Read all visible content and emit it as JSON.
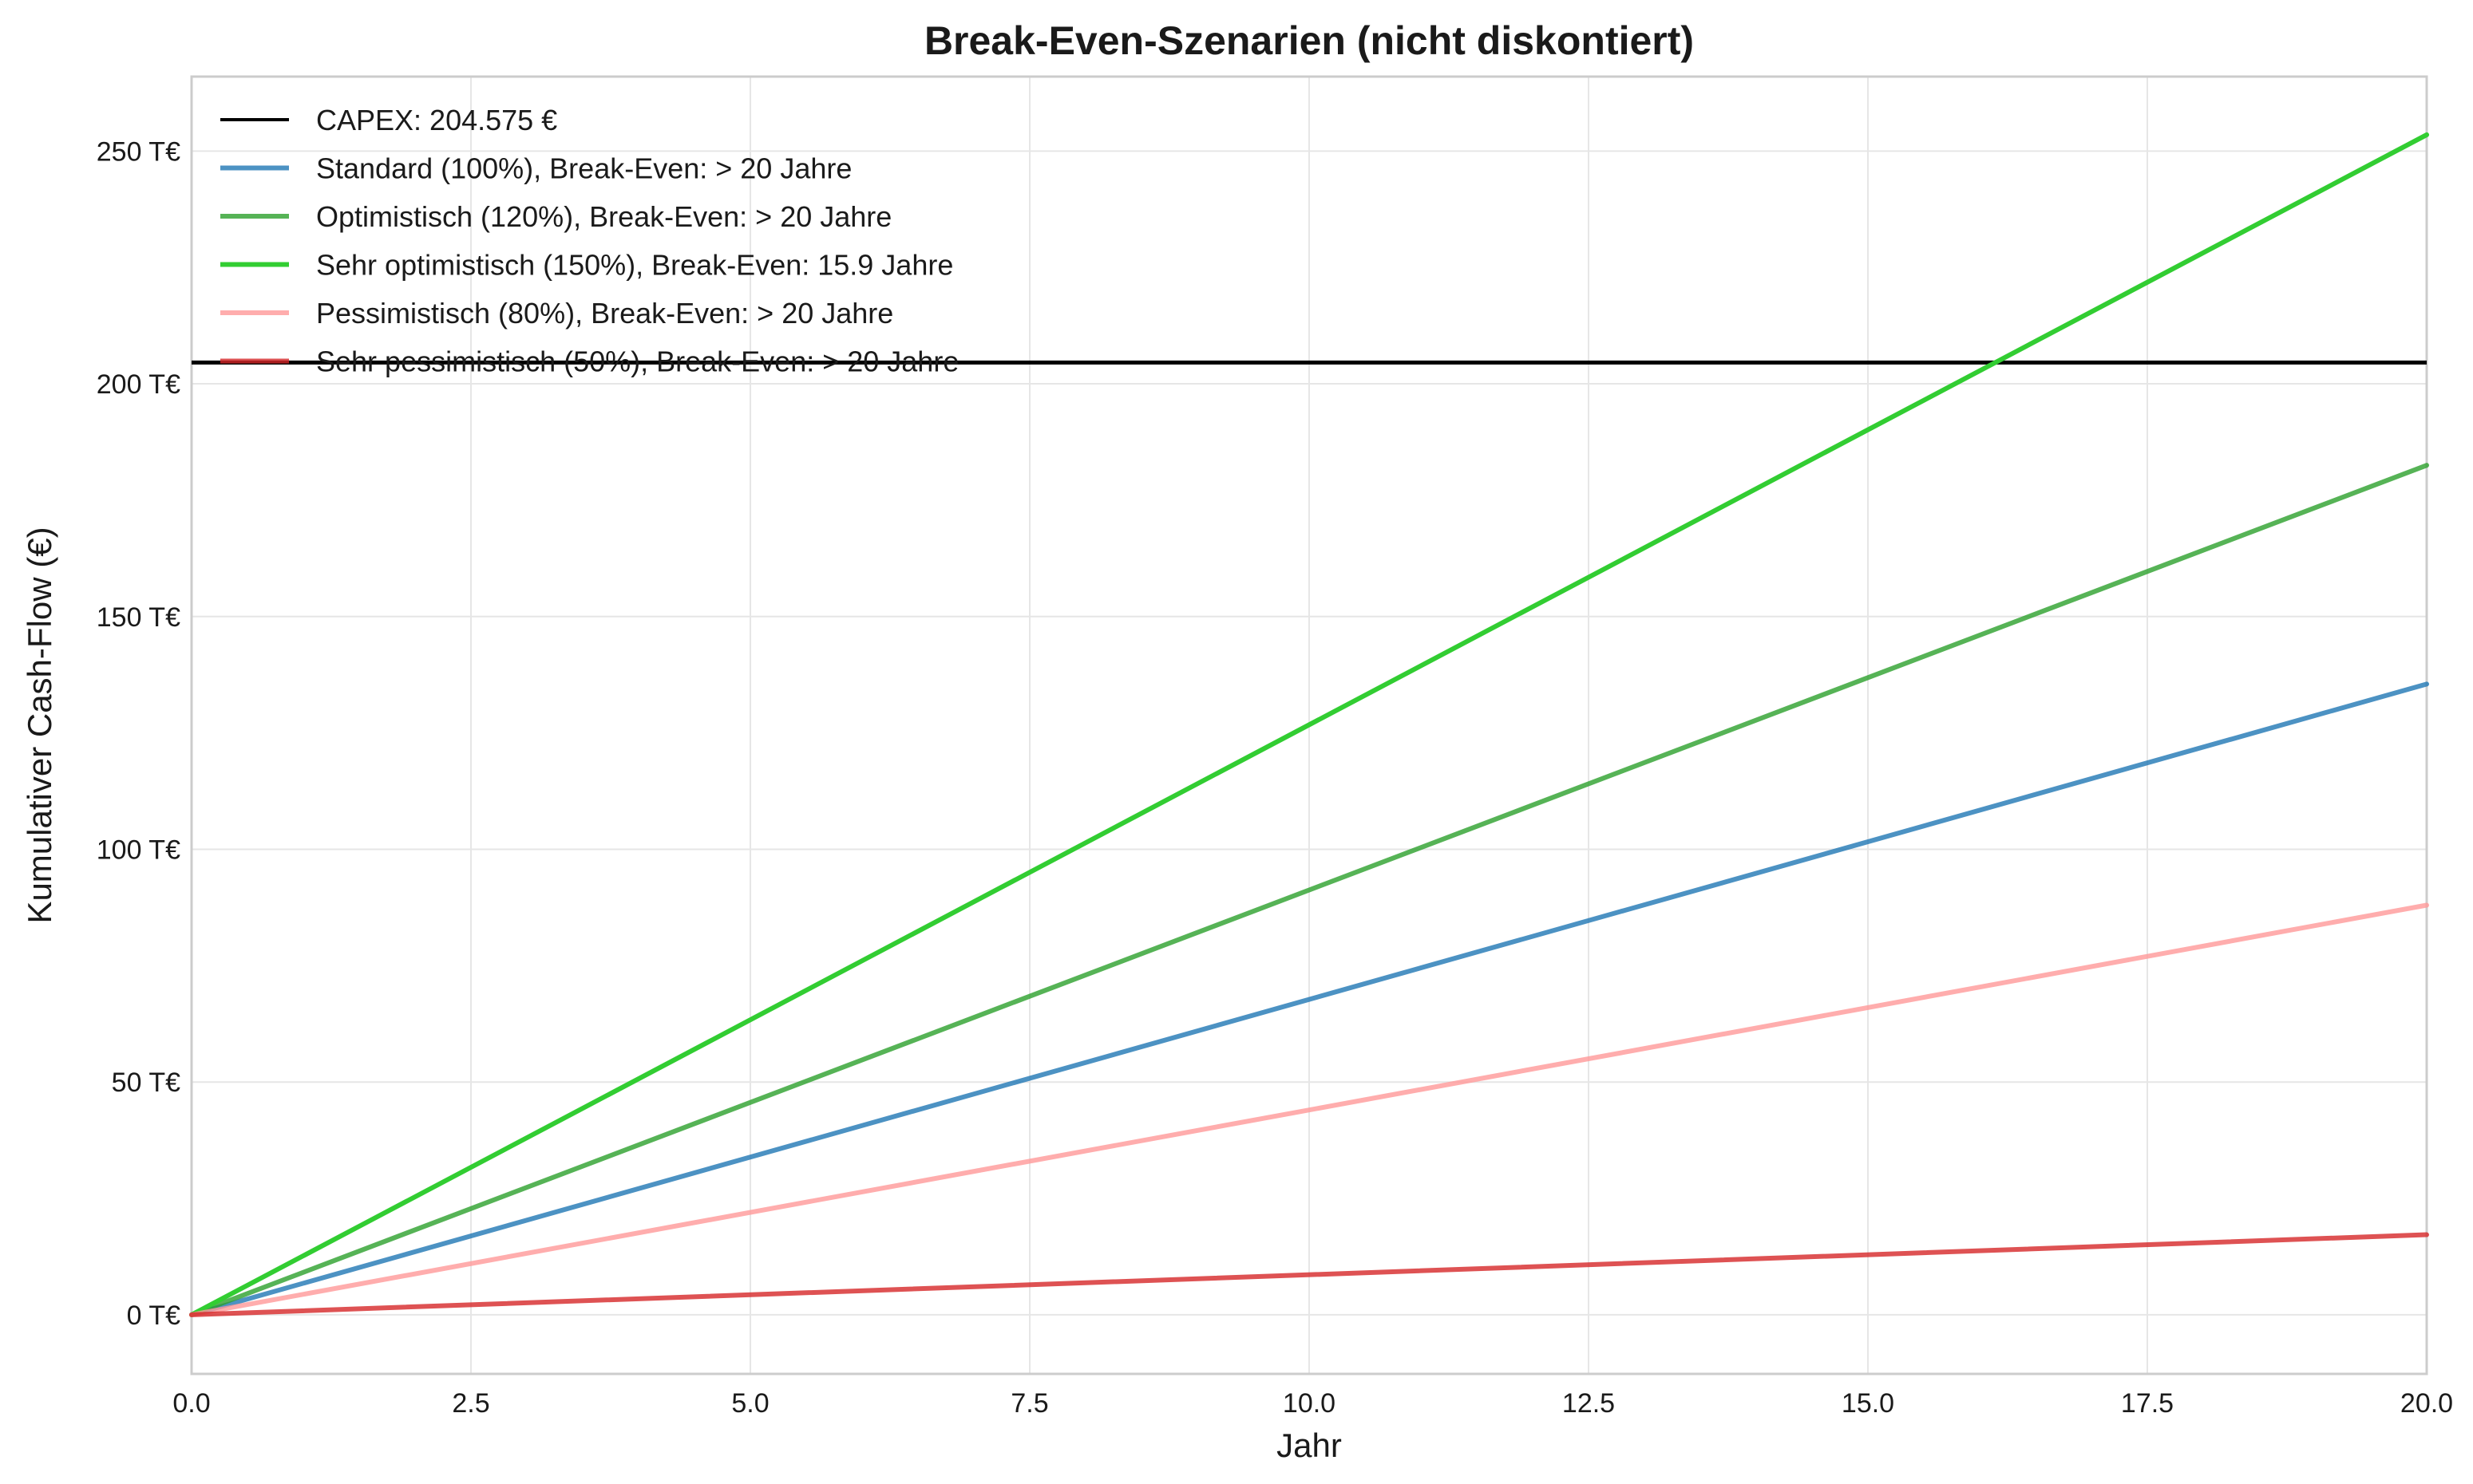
{
  "chart_data": {
    "type": "line",
    "title": "Break-Even-Szenarien (nicht diskontiert)",
    "xlabel": "Jahr",
    "ylabel": "Kumulativer Cash-Flow (€)",
    "xlim": [
      0,
      20
    ],
    "ylim": [
      -12700,
      266000
    ],
    "x_ticks": [
      0,
      2.5,
      5,
      7.5,
      10,
      12.5,
      15,
      17.5,
      20
    ],
    "x_tick_labels": [
      "0.0",
      "2.5",
      "5.0",
      "7.5",
      "10.0",
      "12.5",
      "15.0",
      "17.5",
      "20.0"
    ],
    "y_ticks": [
      0,
      50000,
      100000,
      150000,
      200000,
      250000
    ],
    "y_tick_labels": [
      "0 T€",
      "50 T€",
      "100 T€",
      "150 T€",
      "200 T€",
      "250 T€"
    ],
    "grid": true,
    "legend_position": "top-left",
    "capex": {
      "name": "CAPEX: 204.575 €",
      "value": 204575,
      "color": "#000000"
    },
    "x": [
      0,
      20
    ],
    "series": [
      {
        "name": "Standard (100%), Break-Even: > 20 Jahre",
        "values": [
          0,
          135500
        ],
        "color": "#1f77b4",
        "opacity": 0.8
      },
      {
        "name": "Optimistisch (120%), Break-Even: > 20 Jahre",
        "values": [
          0,
          182500
        ],
        "color": "#2ca02c",
        "opacity": 0.8
      },
      {
        "name": "Sehr optimistisch (150%), Break-Even: 15.9 Jahre",
        "values": [
          0,
          253500
        ],
        "color": "#32cd32",
        "opacity": 1
      },
      {
        "name": "Pessimistisch (80%), Break-Even: > 20 Jahre",
        "values": [
          0,
          88000
        ],
        "color": "#ff9999",
        "opacity": 0.8
      },
      {
        "name": "Sehr pessimistisch (50%), Break-Even: > 20 Jahre",
        "values": [
          0,
          17200
        ],
        "color": "#d62728",
        "opacity": 0.8
      }
    ]
  }
}
